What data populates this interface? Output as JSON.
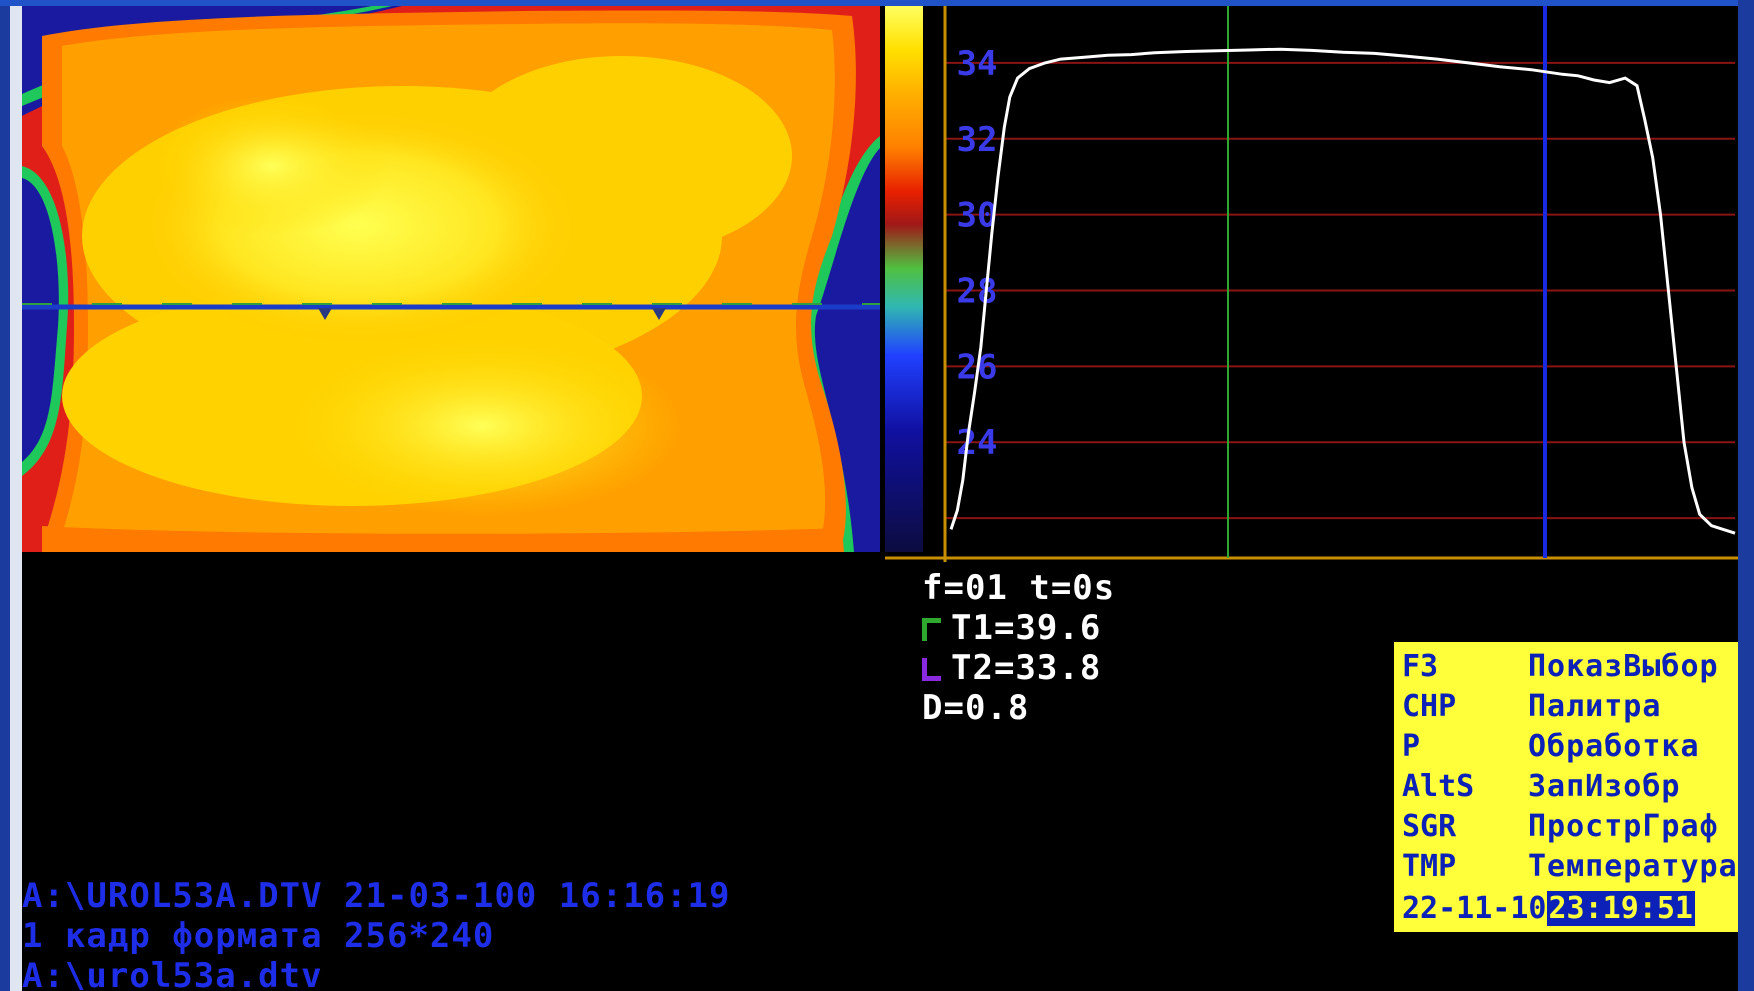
{
  "thermogram": {
    "palette": [
      "#1a1aa0",
      "#1ec85a",
      "#e82020",
      "#ff7a00",
      "#ffa000",
      "#ffd200",
      "#ffff40"
    ],
    "line_color": "#1b3cc8"
  },
  "colorbar": {
    "stops": [
      "#ffff60",
      "#ffe000",
      "#ffb000",
      "#ff8000",
      "#e82000",
      "#a01818",
      "#50c040",
      "#30b8b0",
      "#2040ff",
      "#1010a0",
      "#0c0c40"
    ]
  },
  "graph": {
    "y_ticks": [
      "34",
      "32",
      "30",
      "28",
      "26",
      "24"
    ],
    "y_range": [
      21,
      35.5
    ],
    "gridline_color": "#8a1414",
    "cursor1_color": "#2ea82e",
    "cursor2_color": "#1a2ae0",
    "profile_color": "#ffffff",
    "profile": [
      [
        0,
        21.7
      ],
      [
        0.8,
        22.2
      ],
      [
        1.5,
        23.0
      ],
      [
        2.2,
        24.2
      ],
      [
        3.0,
        25.3
      ],
      [
        3.8,
        26.5
      ],
      [
        4.5,
        28.0
      ],
      [
        5.2,
        29.5
      ],
      [
        6.0,
        31.0
      ],
      [
        6.8,
        32.3
      ],
      [
        7.5,
        33.1
      ],
      [
        8.5,
        33.6
      ],
      [
        10,
        33.85
      ],
      [
        12,
        34.0
      ],
      [
        14,
        34.1
      ],
      [
        17,
        34.15
      ],
      [
        20,
        34.2
      ],
      [
        23,
        34.22
      ],
      [
        26,
        34.27
      ],
      [
        30,
        34.3
      ],
      [
        34,
        34.32
      ],
      [
        38,
        34.34
      ],
      [
        42,
        34.36
      ],
      [
        46,
        34.33
      ],
      [
        50,
        34.28
      ],
      [
        54,
        34.25
      ],
      [
        58,
        34.18
      ],
      [
        62,
        34.1
      ],
      [
        66,
        34.0
      ],
      [
        70,
        33.9
      ],
      [
        74,
        33.82
      ],
      [
        78,
        33.7
      ],
      [
        80,
        33.66
      ],
      [
        82,
        33.55
      ],
      [
        84,
        33.48
      ],
      [
        86,
        33.6
      ],
      [
        87.5,
        33.4
      ],
      [
        88.5,
        32.5
      ],
      [
        89.5,
        31.5
      ],
      [
        90.5,
        30.0
      ],
      [
        91.5,
        28.0
      ],
      [
        92.5,
        26.0
      ],
      [
        93.5,
        24.0
      ],
      [
        94.5,
        22.8
      ],
      [
        95.5,
        22.1
      ],
      [
        97,
        21.8
      ],
      [
        98.5,
        21.7
      ],
      [
        100,
        21.6
      ]
    ]
  },
  "readout": {
    "frame": "f=01 t=0s",
    "t1": "T1=39.6",
    "t2": "T2=33.8",
    "d": "D=0.8"
  },
  "menu": {
    "items": [
      {
        "key": "F3",
        "label": "ПоказВыбор"
      },
      {
        "key": "CHP",
        "label": "Палитра"
      },
      {
        "key": "P",
        "label": "Обработка"
      },
      {
        "key": "AltS",
        "label": "ЗапИзобр"
      },
      {
        "key": "SGR",
        "label": "ПрострГраф"
      },
      {
        "key": "TMP",
        "label": "Температура"
      }
    ],
    "date": "22-11-10",
    "time": "23:19:51"
  },
  "status": {
    "line1": "A:\\UROL53A.DTV 21-03-100 16:16:19",
    "line2": "1 кадр формата 256*240",
    "line3": "A:\\urol53a.dtv"
  }
}
